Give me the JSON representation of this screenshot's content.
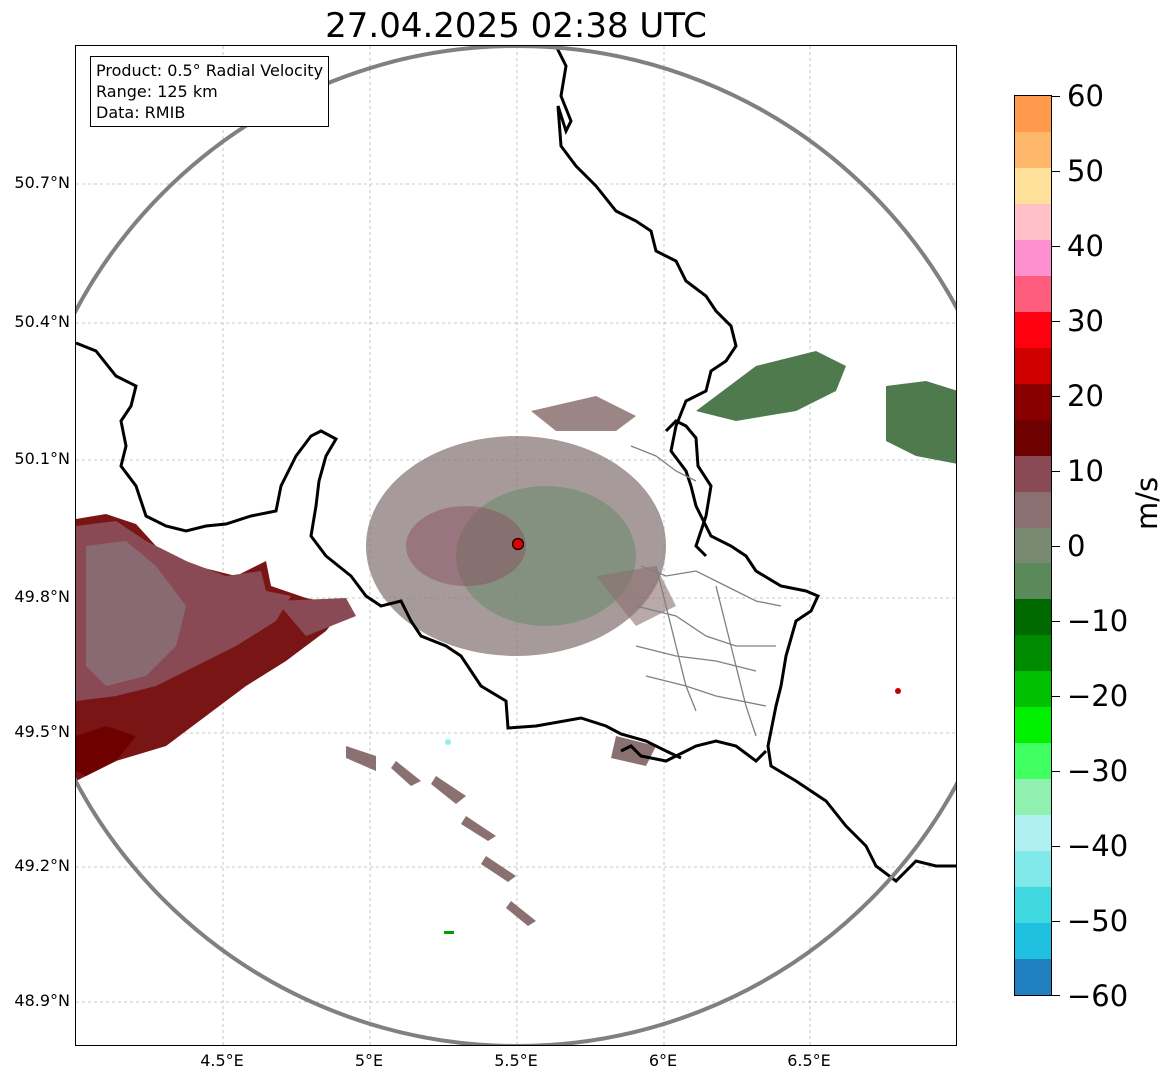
{
  "title": "27.04.2025 02:38 UTC",
  "info": {
    "product": "Product: 0.5° Radial Velocity",
    "range": "Range: 125 km",
    "data": "Data: RMIB"
  },
  "axes": {
    "lat_labels": [
      "50.7°N",
      "50.4°N",
      "50.1°N",
      "49.8°N",
      "49.5°N",
      "49.2°N",
      "48.9°N"
    ],
    "lon_labels": [
      "4.5°E",
      "5°E",
      "5.5°E",
      "6°E",
      "6.5°E"
    ]
  },
  "colorbar": {
    "label": "m/s",
    "ticks": [
      "60",
      "50",
      "40",
      "30",
      "20",
      "10",
      "0",
      "−10",
      "−20",
      "−30",
      "−40",
      "−50",
      "−60"
    ],
    "colors": [
      "#ff9a4d",
      "#ffb86b",
      "#ffe09a",
      "#ffc0c8",
      "#ff90d0",
      "#ff5d7d",
      "#ff0010",
      "#d00000",
      "#8a0000",
      "#6e0000",
      "#8a4a55",
      "#8a7070",
      "#7a8a72",
      "#5a8a5a",
      "#006a00",
      "#008a00",
      "#00c000",
      "#00f000",
      "#40ff60",
      "#90f0b0",
      "#b0f0f0",
      "#80e8e8",
      "#40d8e0",
      "#20c0e0",
      "#2080c0"
    ]
  },
  "radar": {
    "site_marker_color": "#e00000",
    "range_ring_color": "#808080"
  }
}
